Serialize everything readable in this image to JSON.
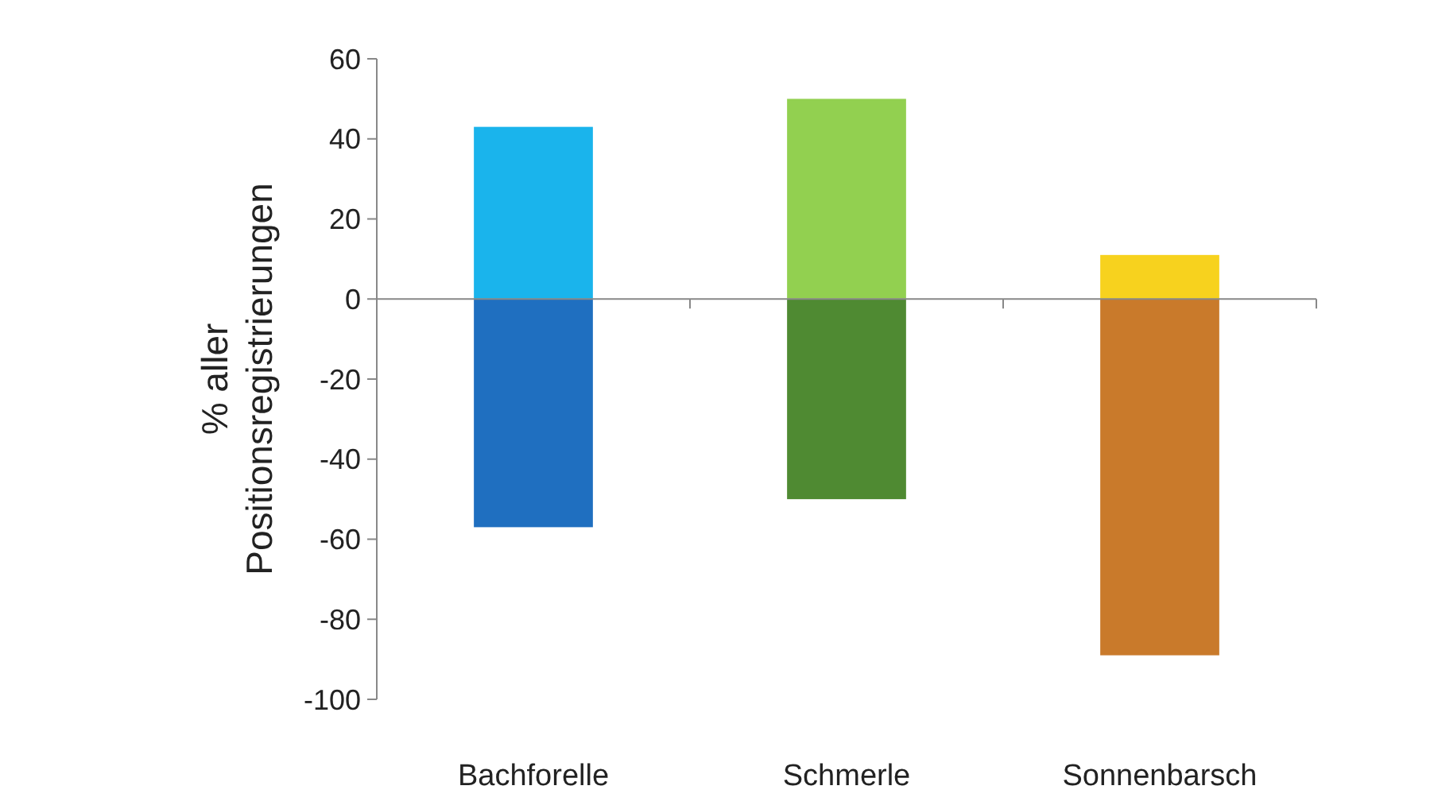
{
  "chart_data": {
    "type": "bar",
    "stacked": true,
    "ylabel": "% aller Positionsregistrierungen",
    "categories": [
      "Bachforelle",
      "Schmerle",
      "Sonnenbarsch"
    ],
    "series": [
      {
        "colors": [
          "#1ab4ec",
          "#92d050",
          "#f7d21e"
        ],
        "values": [
          43,
          50,
          11
        ]
      },
      {
        "colors": [
          "#1f6fc0",
          "#4f8a32",
          "#c97a2b"
        ],
        "values": [
          -57,
          -50,
          -89
        ]
      }
    ],
    "ylim": [
      -100,
      60
    ],
    "yticks": [
      -100,
      -80,
      -60,
      -40,
      -20,
      0,
      20,
      40,
      60
    ]
  }
}
